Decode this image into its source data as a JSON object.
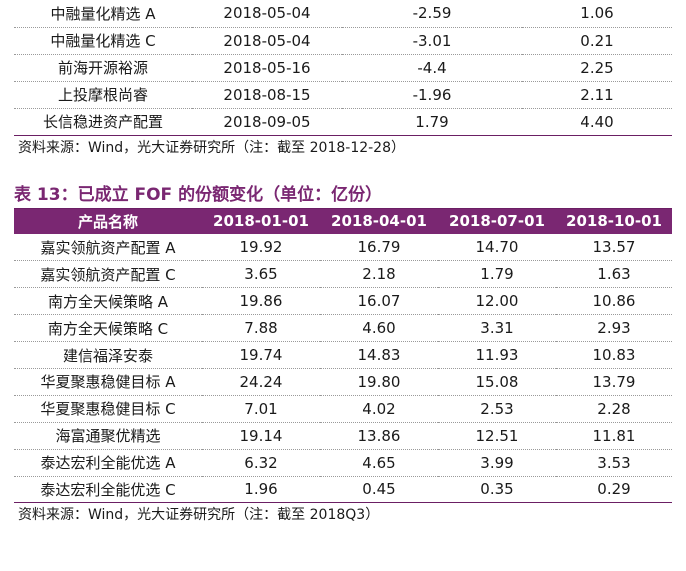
{
  "table1": {
    "rows": [
      [
        "中融量化精选 A",
        "2018-05-04",
        "-2.59",
        "1.06"
      ],
      [
        "中融量化精选 C",
        "2018-05-04",
        "-3.01",
        "0.21"
      ],
      [
        "前海开源裕源",
        "2018-05-16",
        "-4.4",
        "2.25"
      ],
      [
        "上投摩根尚睿",
        "2018-08-15",
        "-1.96",
        "2.11"
      ],
      [
        "长信稳进资产配置",
        "2018-09-05",
        "1.79",
        "4.40"
      ]
    ],
    "source": "资料来源：Wind，光大证券研究所（注：截至 2018-12-28）"
  },
  "table2": {
    "title": "表 13：已成立 FOF 的份额变化（单位：亿份）",
    "headers": [
      "产品名称",
      "2018-01-01",
      "2018-04-01",
      "2018-07-01",
      "2018-10-01"
    ],
    "rows": [
      [
        "嘉实领航资产配置 A",
        "19.92",
        "16.79",
        "14.70",
        "13.57"
      ],
      [
        "嘉实领航资产配置 C",
        "3.65",
        "2.18",
        "1.79",
        "1.63"
      ],
      [
        "南方全天候策略 A",
        "19.86",
        "16.07",
        "12.00",
        "10.86"
      ],
      [
        "南方全天候策略 C",
        "7.88",
        "4.60",
        "3.31",
        "2.93"
      ],
      [
        "建信福泽安泰",
        "19.74",
        "14.83",
        "11.93",
        "10.83"
      ],
      [
        "华夏聚惠稳健目标 A",
        "24.24",
        "19.80",
        "15.08",
        "13.79"
      ],
      [
        "华夏聚惠稳健目标 C",
        "7.01",
        "4.02",
        "2.53",
        "2.28"
      ],
      [
        "海富通聚优精选",
        "19.14",
        "13.86",
        "12.51",
        "11.81"
      ],
      [
        "泰达宏利全能优选 A",
        "6.32",
        "4.65",
        "3.99",
        "3.53"
      ],
      [
        "泰达宏利全能优选 C",
        "1.96",
        "0.45",
        "0.35",
        "0.29"
      ]
    ],
    "source": "资料来源：Wind，光大证券研究所（注：截至 2018Q3）"
  },
  "colors": {
    "accent": "#7a2772",
    "rule": "#6b1f64"
  }
}
